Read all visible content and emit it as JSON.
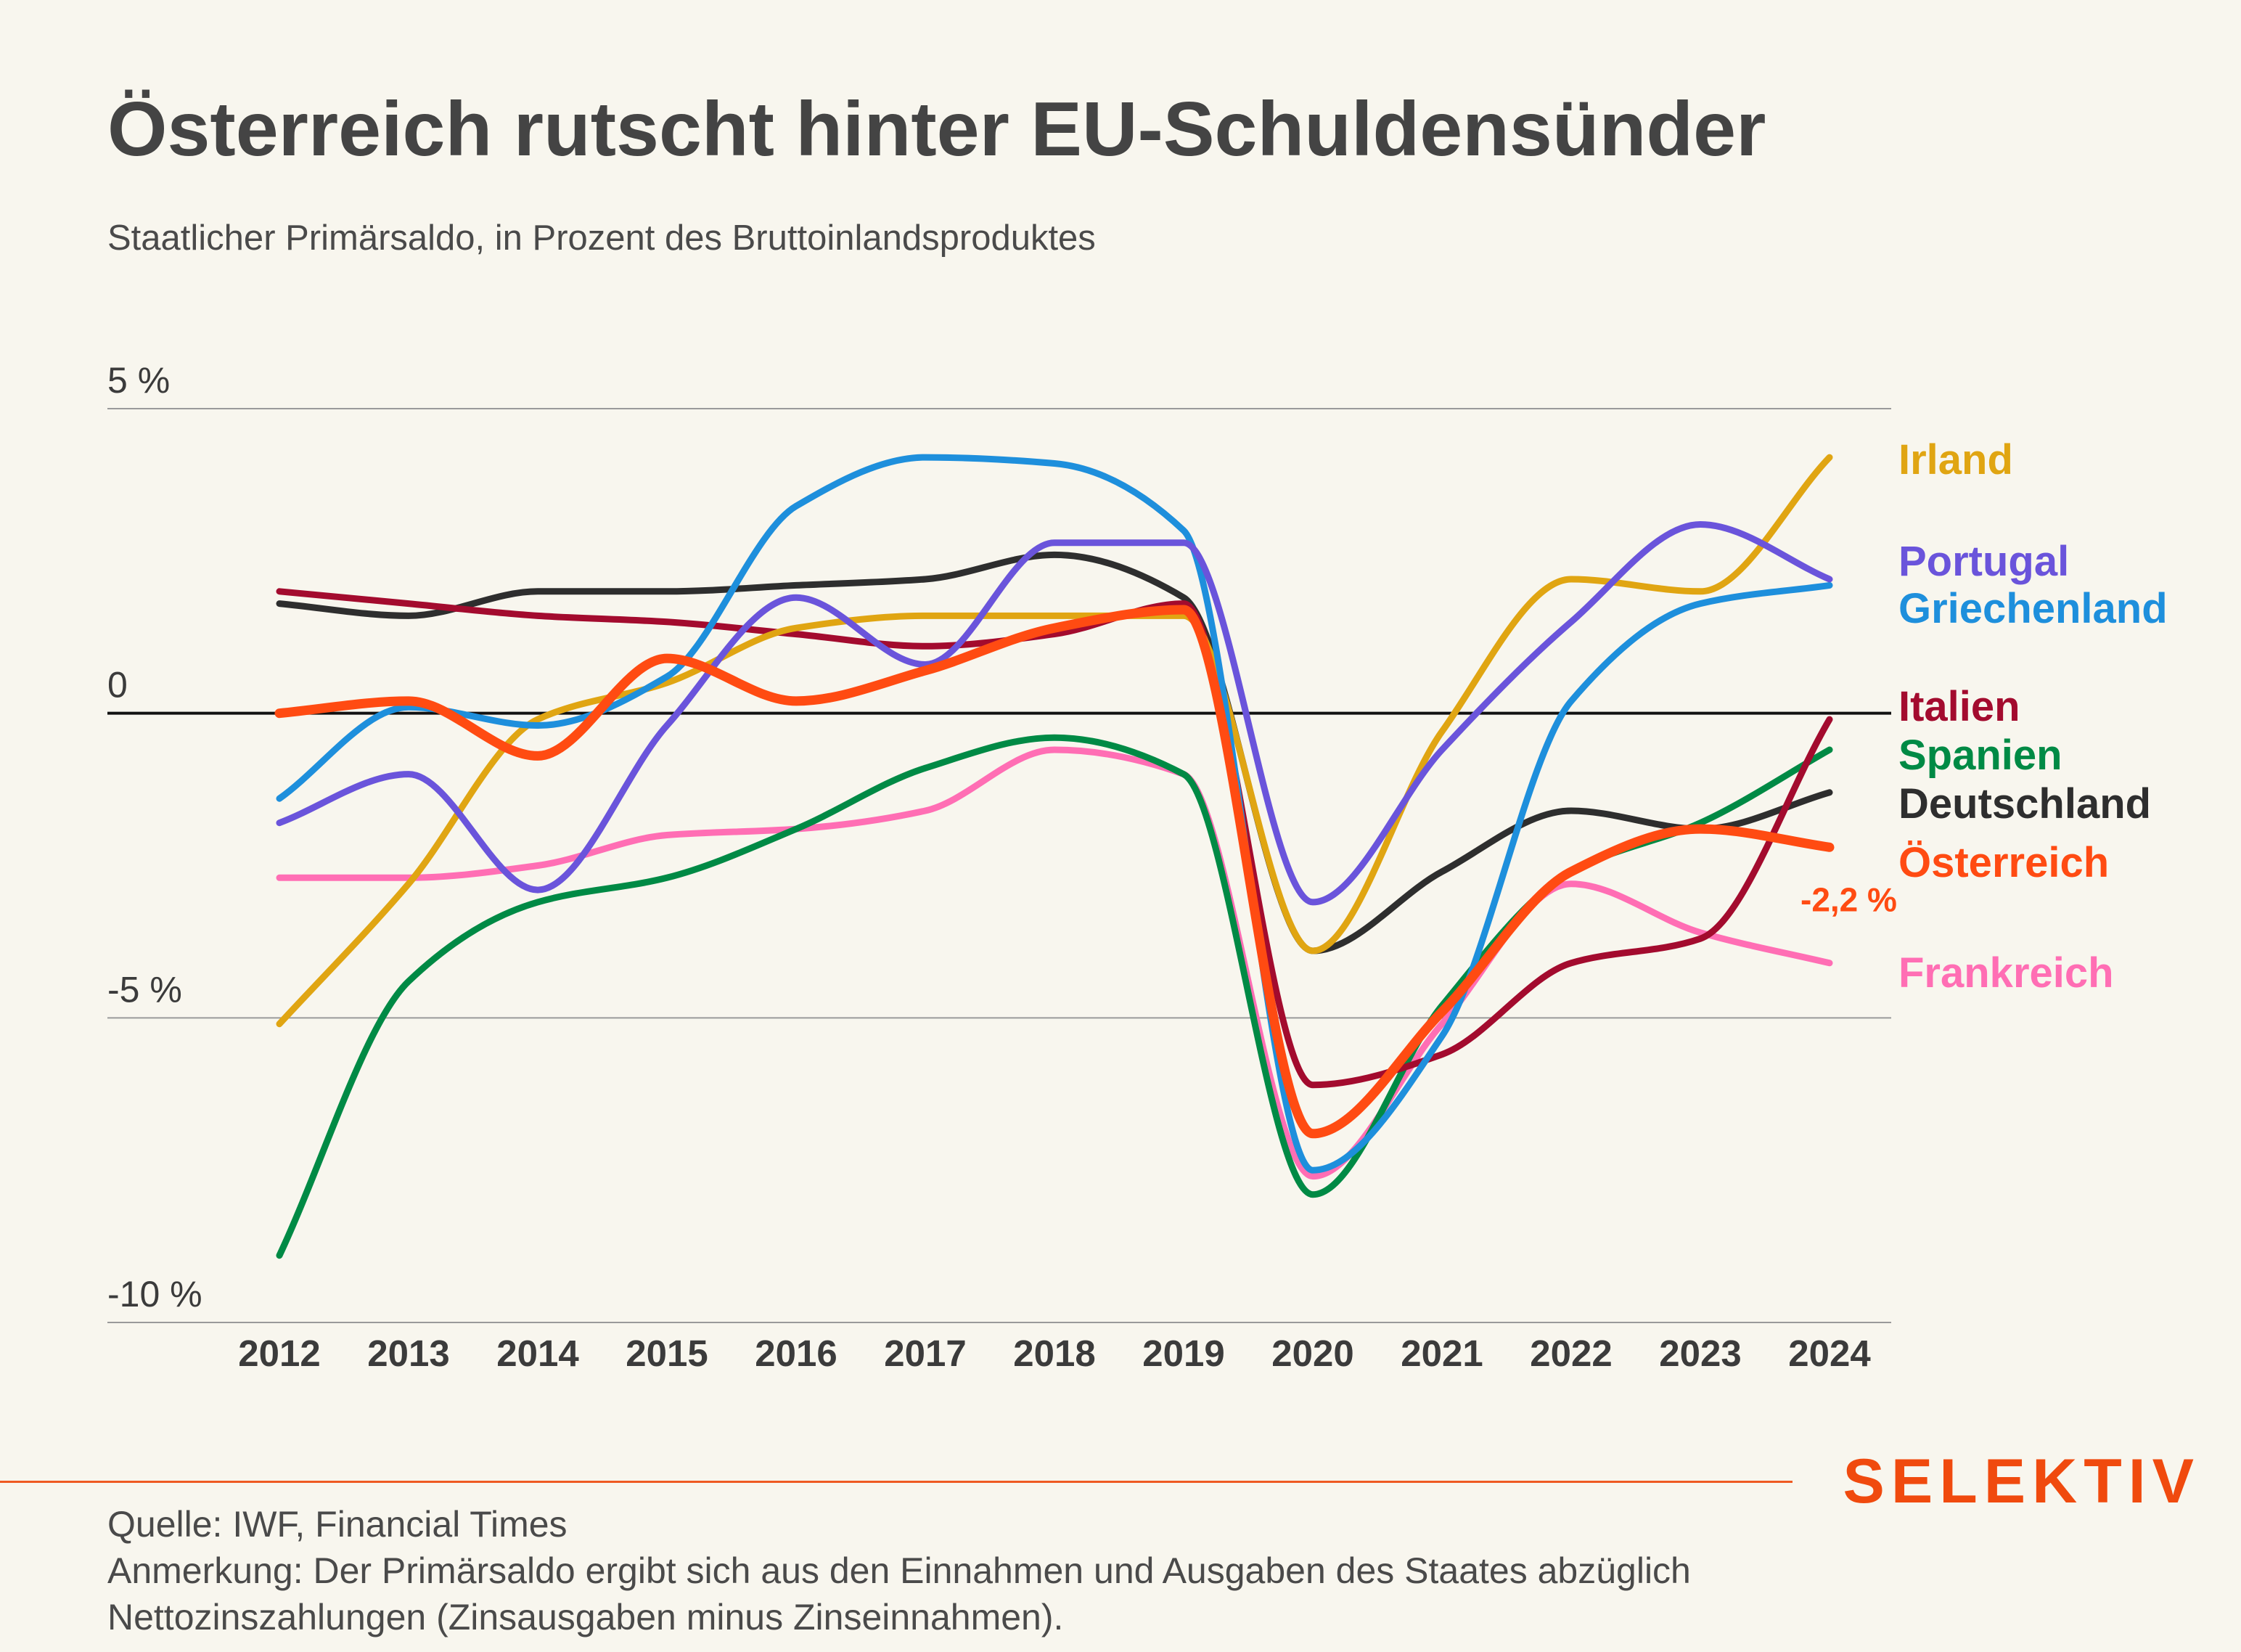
{
  "header": {
    "title": "Österreich rutscht hinter EU-Schuldensünder",
    "subtitle": "Staatlicher Primärsaldo, in Prozent des Bruttoinlandsproduktes"
  },
  "footer": {
    "source": "Quelle: IWF, Financial Times",
    "note_line1": "Anmerkung: Der Primärsaldo ergibt sich aus den Einnahmen und Ausgaben des Staates abzüglich",
    "note_line2": "Nettozinszahlungen (Zinsausgaben minus Zinseinnahmen)."
  },
  "brand": "SELEKTIV",
  "chart_data": {
    "type": "line",
    "title": "Österreich rutscht hinter EU-Schuldensünder",
    "subtitle": "Staatlicher Primärsaldo, in Prozent des Bruttoinlandsproduktes",
    "x": [
      2012,
      2013,
      2014,
      2015,
      2016,
      2017,
      2018,
      2019,
      2020,
      2021,
      2022,
      2023,
      2024
    ],
    "x_tick_labels": [
      "2012",
      "2013",
      "2014",
      "2015",
      "2016",
      "2017",
      "2018",
      "2019",
      "2020",
      "2021",
      "2022",
      "2023",
      "2024"
    ],
    "ylim": [
      -10,
      5
    ],
    "y_ticks": [
      {
        "value": 5,
        "label": "5 %"
      },
      {
        "value": 0,
        "label": "0"
      },
      {
        "value": -5,
        "label": "-5 %"
      },
      {
        "value": -10,
        "label": "-10 %"
      }
    ],
    "grid": true,
    "legend": "inline labels at right end of lines",
    "series": [
      {
        "name": "Frankreich",
        "color": "#ff6eb4",
        "values": [
          -2.7,
          -2.7,
          -2.5,
          -2.0,
          -1.9,
          -1.6,
          -0.6,
          -1.0,
          -7.6,
          -5.1,
          -2.8,
          -3.6,
          -4.1
        ]
      },
      {
        "name": "Deutschland",
        "color": "#2e2e2e",
        "values": [
          1.8,
          1.6,
          2.0,
          2.0,
          2.1,
          2.2,
          2.6,
          1.9,
          -3.9,
          -2.6,
          -1.6,
          -1.9,
          -1.3
        ]
      },
      {
        "name": "Spanien",
        "color": "#008a45",
        "values": [
          -8.9,
          -4.4,
          -3.1,
          -2.7,
          -1.9,
          -0.9,
          -0.4,
          -1.0,
          -7.9,
          -4.8,
          -2.6,
          -1.8,
          -0.6
        ]
      },
      {
        "name": "Italien",
        "color": "#a30b2e",
        "values": [
          2.0,
          1.8,
          1.6,
          1.5,
          1.3,
          1.1,
          1.3,
          1.8,
          -6.1,
          -5.6,
          -4.1,
          -3.7,
          -0.1
        ]
      },
      {
        "name": "Irland",
        "color": "#e0a512",
        "values": [
          -5.1,
          -2.8,
          -0.1,
          0.5,
          1.4,
          1.6,
          1.6,
          1.6,
          -3.9,
          -0.3,
          2.2,
          2.0,
          4.2
        ]
      },
      {
        "name": "Griechenland",
        "color": "#1e8fdc",
        "values": [
          -1.4,
          0.1,
          -0.2,
          0.6,
          3.4,
          4.2,
          4.1,
          3.0,
          -7.5,
          -5.3,
          0.2,
          1.8,
          2.1
        ]
      },
      {
        "name": "Portugal",
        "color": "#6a54db",
        "values": [
          -1.8,
          -1.0,
          -2.9,
          -0.2,
          1.9,
          0.8,
          2.8,
          2.8,
          -3.1,
          -0.6,
          1.5,
          3.1,
          2.2
        ]
      },
      {
        "name": "Österreich",
        "color": "#ff4b12",
        "values": [
          0.0,
          0.2,
          -0.7,
          0.9,
          0.2,
          0.7,
          1.4,
          1.7,
          -6.9,
          -4.9,
          -2.6,
          -1.9,
          -2.2
        ]
      }
    ],
    "annotations": [
      {
        "series": "Österreich",
        "x": 2024,
        "text": "-2,2 %"
      }
    ]
  }
}
